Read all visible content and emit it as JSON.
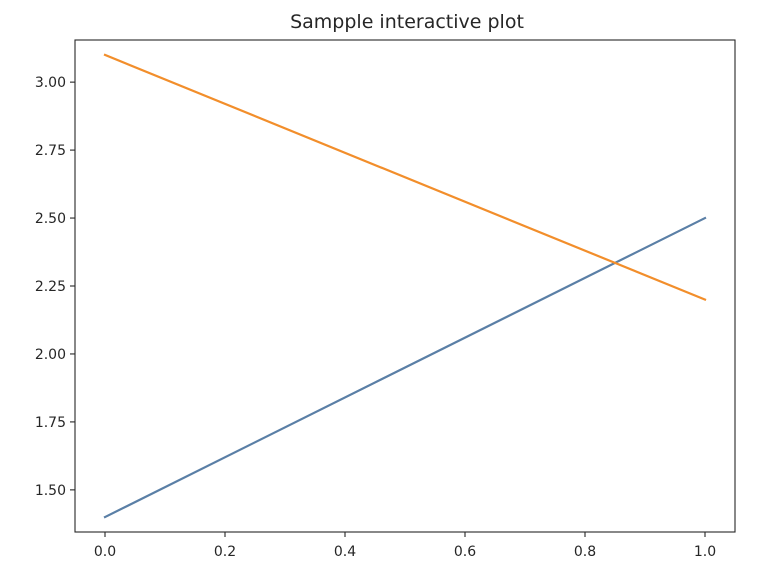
{
  "chart_data": {
    "type": "line",
    "title": "Sampple interactive plot",
    "xlabel": "",
    "ylabel": "",
    "xlim": [
      -0.05,
      1.05
    ],
    "ylim": [
      1.345,
      3.155
    ],
    "xticks": [
      0.0,
      0.2,
      0.4,
      0.6,
      0.8,
      1.0
    ],
    "xtick_labels": [
      "0.0",
      "0.2",
      "0.4",
      "0.6",
      "0.8",
      "1.0"
    ],
    "yticks": [
      1.5,
      1.75,
      2.0,
      2.25,
      2.5,
      2.75,
      3.0
    ],
    "ytick_labels": [
      "1.50",
      "1.75",
      "2.00",
      "2.25",
      "2.50",
      "2.75",
      "3.00"
    ],
    "grid": false,
    "series": [
      {
        "x": [
          0,
          1
        ],
        "y": [
          1.4,
          2.5
        ],
        "color": "#5a7fa6"
      },
      {
        "x": [
          0,
          1
        ],
        "y": [
          3.1,
          2.2
        ],
        "color": "#f28e2b"
      }
    ]
  }
}
